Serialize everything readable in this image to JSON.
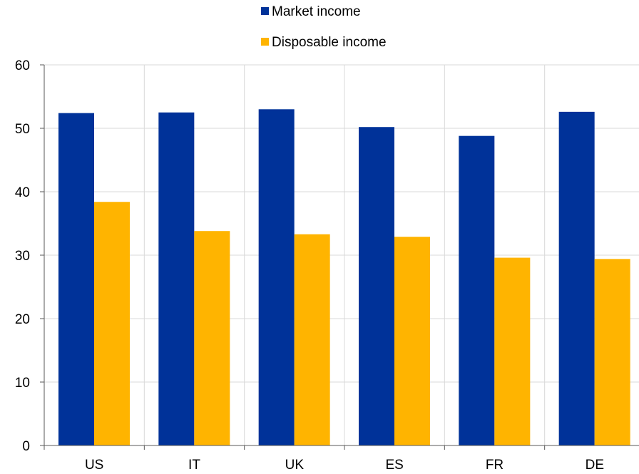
{
  "chart_data": {
    "type": "bar",
    "categories": [
      "US",
      "IT",
      "UK",
      "ES",
      "FR",
      "DE"
    ],
    "series": [
      {
        "name": "Market income",
        "values": [
          52.4,
          52.5,
          53.0,
          50.2,
          48.8,
          52.6
        ],
        "color": "#003299"
      },
      {
        "name": "Disposable income",
        "values": [
          38.4,
          33.8,
          33.3,
          32.9,
          29.6,
          29.4
        ],
        "color": "#FFB400"
      }
    ],
    "ylim": [
      0,
      60
    ],
    "yticks": [
      0,
      10,
      20,
      30,
      40,
      50,
      60
    ],
    "grid": true,
    "legend_position": "top-center",
    "gridline_color": "#d9d9d9",
    "axis_color": "#595959"
  }
}
